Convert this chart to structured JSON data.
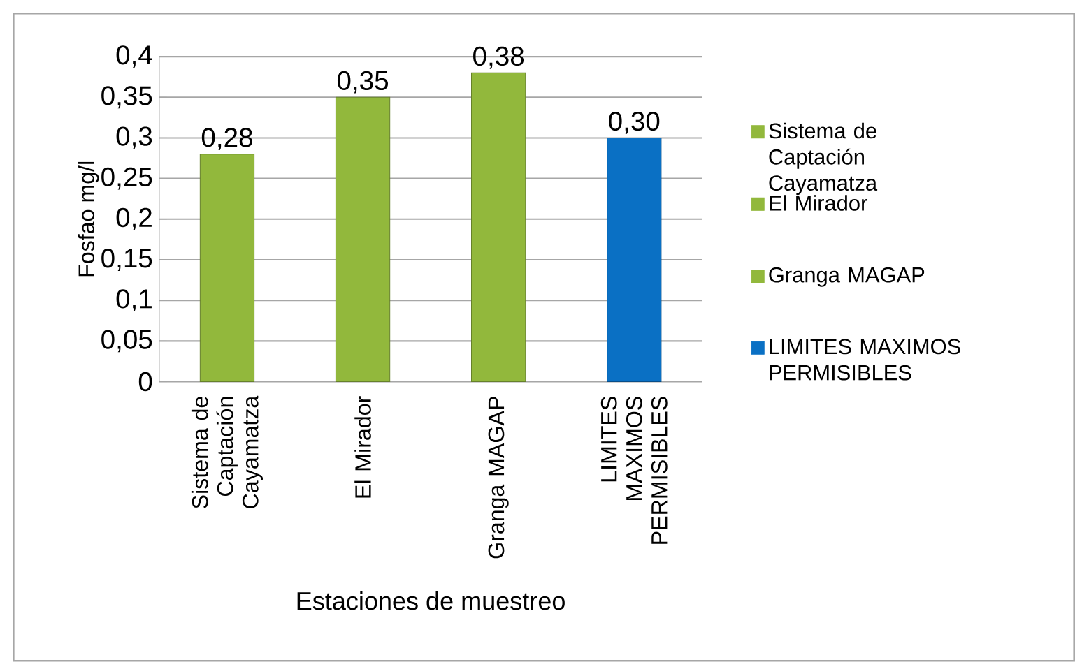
{
  "chart_data": {
    "type": "bar",
    "xlabel": "Estaciones de muestreo",
    "ylabel": "Fosfao mg/l",
    "categories": [
      "Sistema de Captación Cayamatza",
      "El Mirador",
      "Granga MAGAP",
      "LIMITES MAXIMOS PERMISIBLES"
    ],
    "series": [
      {
        "name": "Sistema de Captación Cayamatza",
        "color": "#92b83c",
        "values": [
          0.28,
          null,
          null,
          null
        ],
        "value_labels": [
          "0,28",
          null,
          null,
          null
        ]
      },
      {
        "name": "El Mirador",
        "color": "#92b83c",
        "values": [
          null,
          0.35,
          null,
          null
        ],
        "value_labels": [
          null,
          "0,35",
          null,
          null
        ]
      },
      {
        "name": "Granga MAGAP",
        "color": "#92b83c",
        "values": [
          null,
          null,
          0.38,
          null
        ],
        "value_labels": [
          null,
          null,
          "0,38",
          null
        ]
      },
      {
        "name": "LIMITES MAXIMOS PERMISIBLES",
        "color": "#0a70c4",
        "values": [
          null,
          null,
          null,
          0.3
        ],
        "value_labels": [
          null,
          null,
          null,
          "0,30"
        ]
      }
    ],
    "ylim": [
      0,
      0.4
    ],
    "yticks": [
      {
        "value": 0,
        "label": "0"
      },
      {
        "value": 0.05,
        "label": "0,05"
      },
      {
        "value": 0.1,
        "label": "0,1"
      },
      {
        "value": 0.15,
        "label": "0,15"
      },
      {
        "value": 0.2,
        "label": "0,2"
      },
      {
        "value": 0.25,
        "label": "0,25"
      },
      {
        "value": 0.3,
        "label": "0,3"
      },
      {
        "value": 0.35,
        "label": "0,35"
      },
      {
        "value": 0.4,
        "label": "0,4"
      }
    ],
    "grid": "y",
    "legend": "right"
  }
}
